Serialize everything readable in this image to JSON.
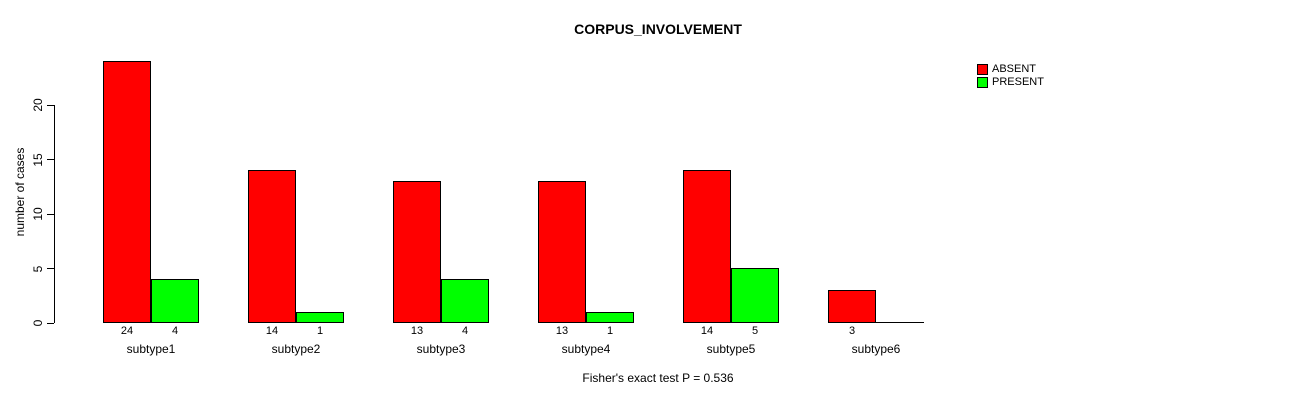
{
  "chart_data": {
    "type": "bar",
    "title": "CORPUS_INVOLVEMENT",
    "ylabel": "number of cases",
    "categories": [
      "subtype1",
      "subtype2",
      "subtype3",
      "subtype4",
      "subtype5",
      "subtype6"
    ],
    "series": [
      {
        "name": "ABSENT",
        "color": "#ff0000",
        "values": [
          24,
          14,
          13,
          13,
          14,
          3
        ]
      },
      {
        "name": "PRESENT",
        "color": "#00ff00",
        "values": [
          4,
          1,
          4,
          1,
          5,
          0
        ]
      }
    ],
    "value_labels": [
      [
        "24",
        "4"
      ],
      [
        "14",
        "1"
      ],
      [
        "13",
        "4"
      ],
      [
        "13",
        "1"
      ],
      [
        "14",
        "5"
      ],
      [
        "3",
        ""
      ]
    ],
    "yticks": [
      0,
      5,
      10,
      15,
      20
    ],
    "ylim": [
      0,
      24
    ],
    "grid": false,
    "legend_position": "top-right",
    "annotation": "Fisher's exact test P = 0.536",
    "colors": {
      "absent": "#ff0000",
      "present": "#00ff00",
      "axis": "#000000",
      "background": "#ffffff"
    }
  }
}
